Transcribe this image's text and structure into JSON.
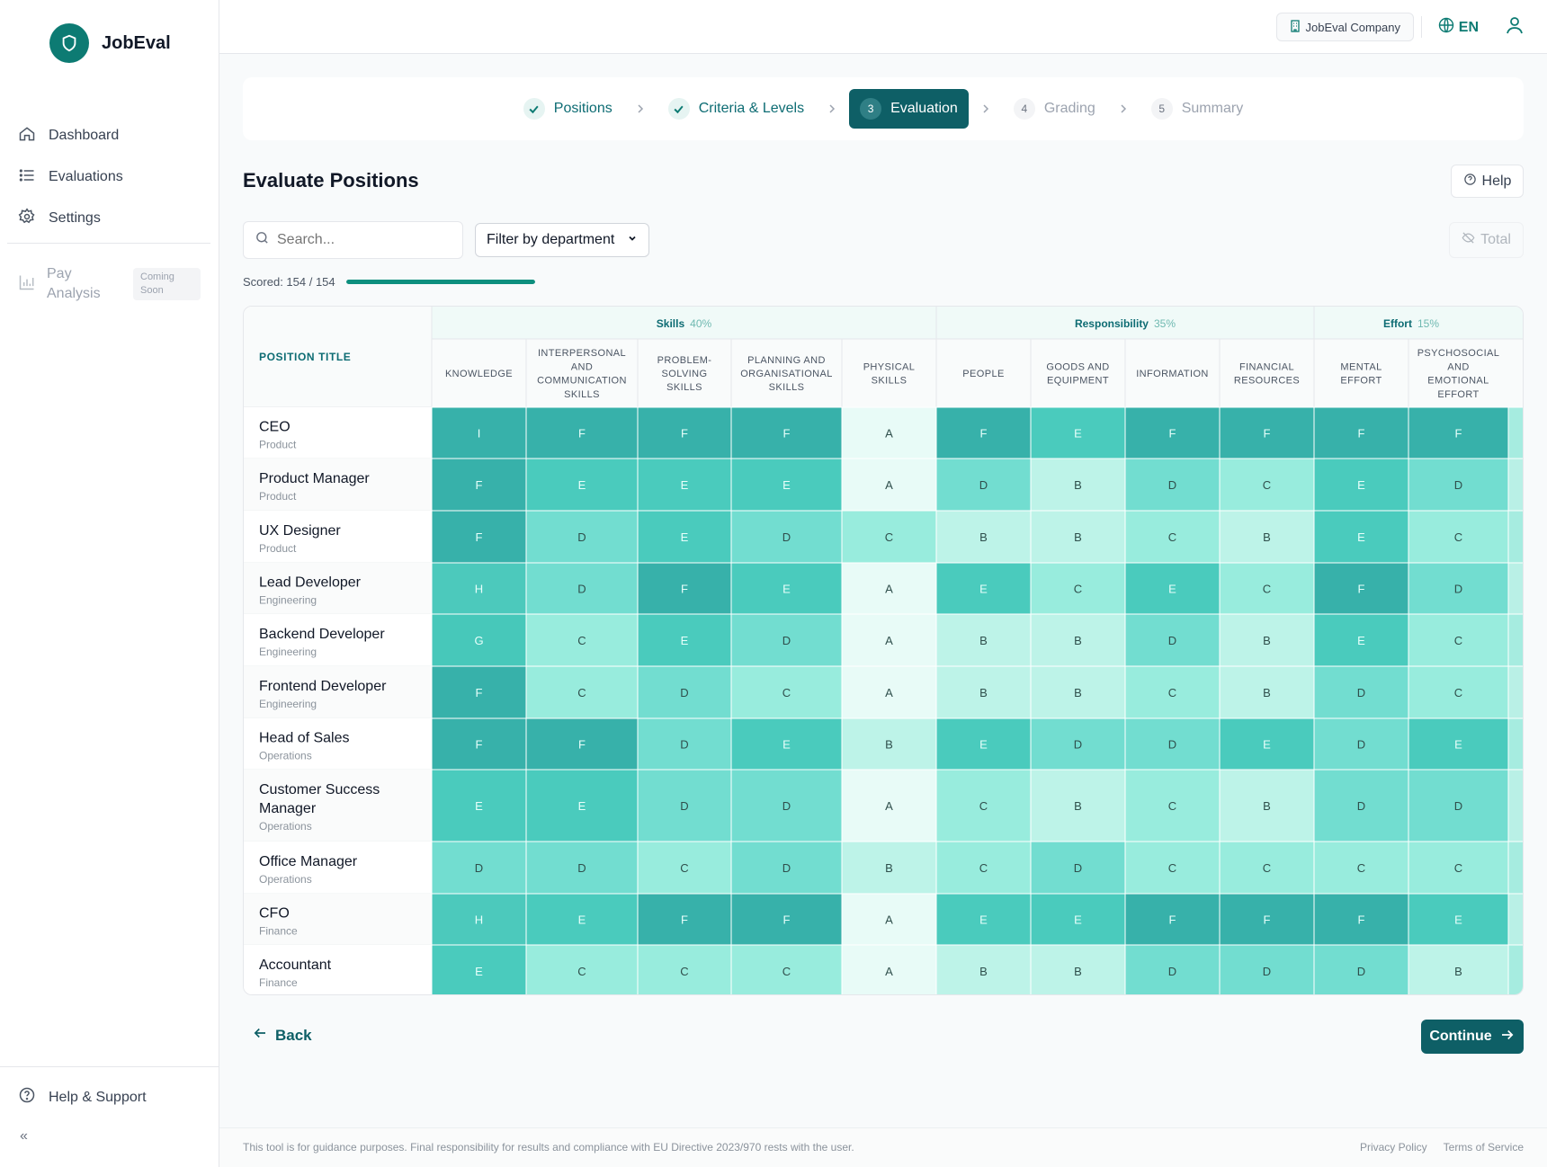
{
  "brand": {
    "name": "JobEval"
  },
  "sidebar": {
    "items": [
      {
        "label": "Dashboard",
        "icon": "home-icon"
      },
      {
        "label": "Evaluations",
        "icon": "list-icon"
      },
      {
        "label": "Settings",
        "icon": "gear-icon"
      }
    ],
    "pay": {
      "label": "Pay Analysis",
      "badge": "Coming Soon"
    },
    "help": "Help & Support",
    "collapse": "«"
  },
  "topbar": {
    "company": "JobEval Company",
    "lang": "EN"
  },
  "stepper": [
    {
      "num": "1",
      "label": "Positions",
      "state": "done"
    },
    {
      "num": "2",
      "label": "Criteria & Levels",
      "state": "done"
    },
    {
      "num": "3",
      "label": "Evaluation",
      "state": "active"
    },
    {
      "num": "4",
      "label": "Grading",
      "state": "todo"
    },
    {
      "num": "5",
      "label": "Summary",
      "state": "todo"
    }
  ],
  "page": {
    "title": "Evaluate Positions",
    "help": "Help",
    "search_placeholder": "Search...",
    "filter_label": "Filter by department",
    "total_label": "Total",
    "scored_label": "Scored: 154 / 154",
    "scored_fraction": 1.0,
    "back": "Back",
    "continue": "Continue"
  },
  "table": {
    "position_header": "POSITION TITLE",
    "groups": [
      {
        "name": "Skills",
        "weight": "40%",
        "span": 5
      },
      {
        "name": "Responsibility",
        "weight": "35%",
        "span": 4
      },
      {
        "name": "Effort",
        "weight": "15%",
        "span": 2
      }
    ],
    "columns": [
      [
        "KNOWLEDGE"
      ],
      [
        "INTERPERSONAL",
        "AND",
        "COMMUNICATION",
        "SKILLS"
      ],
      [
        "PROBLEM-",
        "SOLVING",
        "SKILLS"
      ],
      [
        "PLANNING AND",
        "ORGANISATIONAL",
        "SKILLS"
      ],
      [
        "PHYSICAL",
        "SKILLS"
      ],
      [
        "PEOPLE"
      ],
      [
        "GOODS AND",
        "EQUIPMENT"
      ],
      [
        "INFORMATION"
      ],
      [
        "FINANCIAL",
        "RESOURCES"
      ],
      [
        "MENTAL",
        "EFFORT"
      ],
      [
        "PSYCHOSOCIAL",
        "AND",
        "EMOTIONAL",
        "EFFORT"
      ]
    ],
    "rows": [
      {
        "title": [
          "CEO"
        ],
        "dept": "Product",
        "levels": [
          "I",
          "F",
          "F",
          "F",
          "A",
          "F",
          "E",
          "F",
          "F",
          "F",
          "F"
        ]
      },
      {
        "title": [
          "Product Manager"
        ],
        "dept": "Product",
        "levels": [
          "F",
          "E",
          "E",
          "E",
          "A",
          "D",
          "B",
          "D",
          "C",
          "E",
          "D"
        ]
      },
      {
        "title": [
          "UX Designer"
        ],
        "dept": "Product",
        "levels": [
          "F",
          "D",
          "E",
          "D",
          "C",
          "B",
          "B",
          "C",
          "B",
          "E",
          "C"
        ]
      },
      {
        "title": [
          "Lead Developer"
        ],
        "dept": "Engineering",
        "levels": [
          "H",
          "D",
          "F",
          "E",
          "A",
          "E",
          "C",
          "E",
          "C",
          "F",
          "D"
        ]
      },
      {
        "title": [
          "Backend Developer"
        ],
        "dept": "Engineering",
        "levels": [
          "G",
          "C",
          "E",
          "D",
          "A",
          "B",
          "B",
          "D",
          "B",
          "E",
          "C"
        ]
      },
      {
        "title": [
          "Frontend Developer"
        ],
        "dept": "Engineering",
        "levels": [
          "F",
          "C",
          "D",
          "C",
          "A",
          "B",
          "B",
          "C",
          "B",
          "D",
          "C"
        ]
      },
      {
        "title": [
          "Head of Sales"
        ],
        "dept": "Operations",
        "levels": [
          "F",
          "F",
          "D",
          "E",
          "B",
          "E",
          "D",
          "D",
          "E",
          "D",
          "E"
        ]
      },
      {
        "title": [
          "Customer Success",
          "Manager"
        ],
        "dept": "Operations",
        "levels": [
          "E",
          "E",
          "D",
          "D",
          "A",
          "C",
          "B",
          "C",
          "B",
          "D",
          "D"
        ]
      },
      {
        "title": [
          "Office Manager"
        ],
        "dept": "Operations",
        "levels": [
          "D",
          "D",
          "C",
          "D",
          "B",
          "C",
          "D",
          "C",
          "C",
          "C",
          "C"
        ]
      },
      {
        "title": [
          "CFO"
        ],
        "dept": "Finance",
        "levels": [
          "H",
          "E",
          "F",
          "F",
          "A",
          "E",
          "E",
          "F",
          "F",
          "F",
          "E"
        ]
      },
      {
        "title": [
          "Accountant"
        ],
        "dept": "Finance",
        "levels": [
          "E",
          "C",
          "C",
          "C",
          "A",
          "B",
          "B",
          "D",
          "D",
          "D",
          "B"
        ]
      }
    ]
  },
  "colors": {
    "accent": "#0e5f66",
    "level": {
      "A": "#e8fbf7",
      "B": "#bdf3e8",
      "C": "#98ecdd",
      "D": "#72ddd0",
      "E": "#4acbbd",
      "F": "#37b1aa",
      "G": "#47c8ba",
      "H": "#4cc9bc",
      "I": "#37b1aa"
    }
  },
  "footer": {
    "note": "This tool is for guidance purposes. Final responsibility for results and compliance with EU Directive 2023/970 rests with the user.",
    "links": [
      "Privacy Policy",
      "Terms of Service"
    ]
  }
}
